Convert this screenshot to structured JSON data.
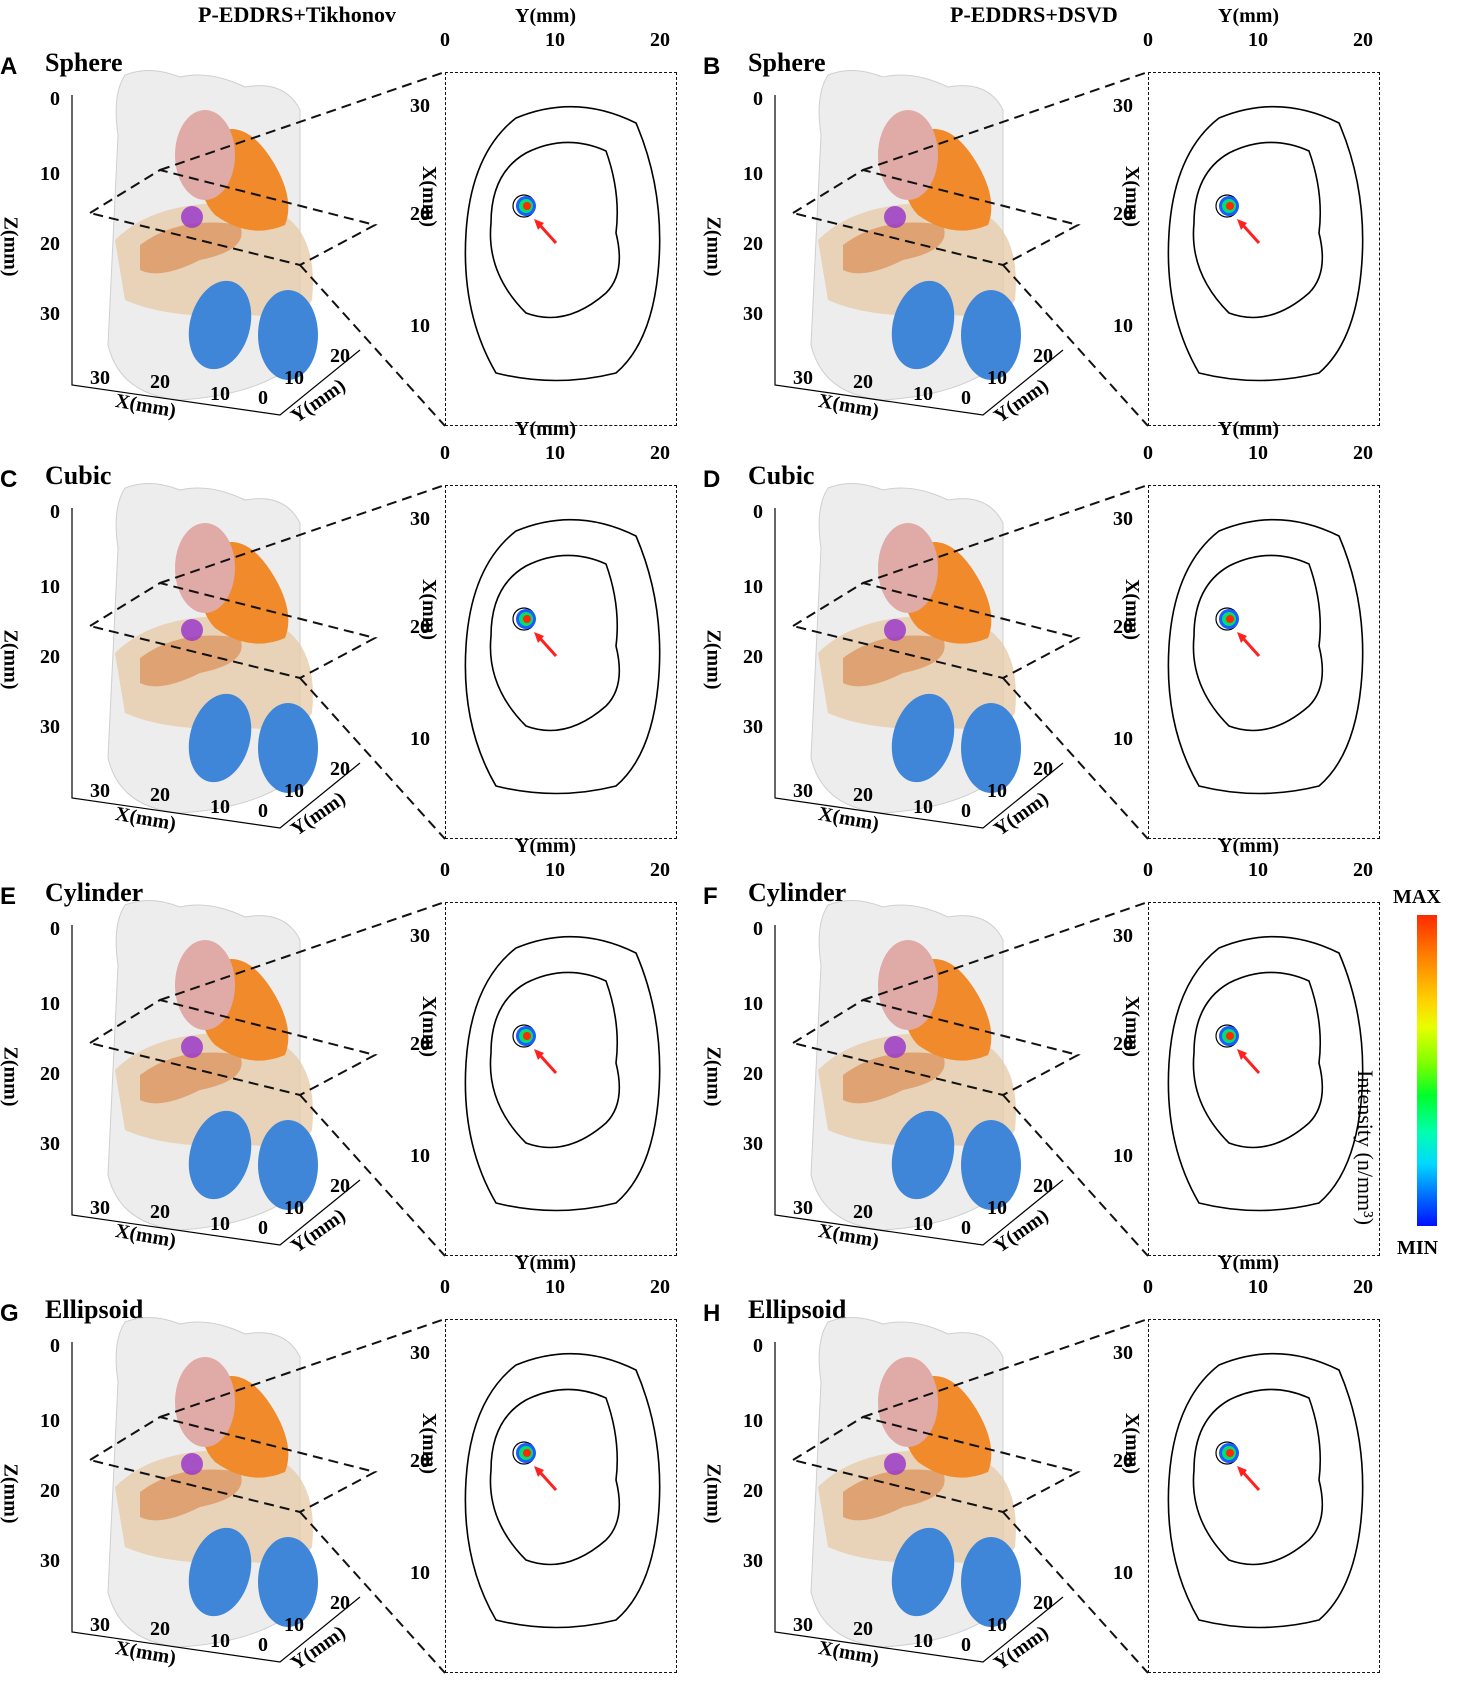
{
  "columns": [
    {
      "title": "P-EDDRS+Tikhonov"
    },
    {
      "title": "P-EDDRS+DSVD"
    }
  ],
  "panels": [
    {
      "letter": "A",
      "shape": "Sphere",
      "method": "Tikhonov"
    },
    {
      "letter": "B",
      "shape": "Sphere",
      "method": "DSVD"
    },
    {
      "letter": "C",
      "shape": "Cubic",
      "method": "Tikhonov"
    },
    {
      "letter": "D",
      "shape": "Cubic",
      "method": "DSVD"
    },
    {
      "letter": "E",
      "shape": "Cylinder",
      "method": "Tikhonov"
    },
    {
      "letter": "F",
      "shape": "Cylinder",
      "method": "DSVD"
    },
    {
      "letter": "G",
      "shape": "Ellipsoid",
      "method": "Tikhonov"
    },
    {
      "letter": "H",
      "shape": "Ellipsoid",
      "method": "DSVD"
    }
  ],
  "axes3d": {
    "z_label": "Z(mm)",
    "z_ticks": [
      "0",
      "10",
      "20",
      "30"
    ],
    "x_label": "X(mm)",
    "x_ticks": [
      "30",
      "20",
      "10"
    ],
    "y_label": "Y(mm)",
    "y_ticks": [
      "0",
      "10",
      "20"
    ]
  },
  "slice_axes": {
    "y_label": "Y(mm)",
    "y_ticks": [
      "0",
      "10",
      "20"
    ],
    "x_label": "X(mm)",
    "x_ticks": [
      "30",
      "20",
      "10"
    ]
  },
  "colorbar": {
    "max_label": "MAX",
    "min_label": "MIN",
    "title": "Intensity (n/mm³)",
    "top_color": "#ff3c00",
    "bottom_color": "#0010ff"
  },
  "colors": {
    "heart": "#e0aaa6",
    "liver": "#f08a2a",
    "stomach": "#dd9a66",
    "intestine": "#e6c8a6",
    "kidney": "#3f85d8",
    "tumor": "#9a3cc8",
    "body": "#e6e6e6",
    "arrow": "#ff2020"
  }
}
